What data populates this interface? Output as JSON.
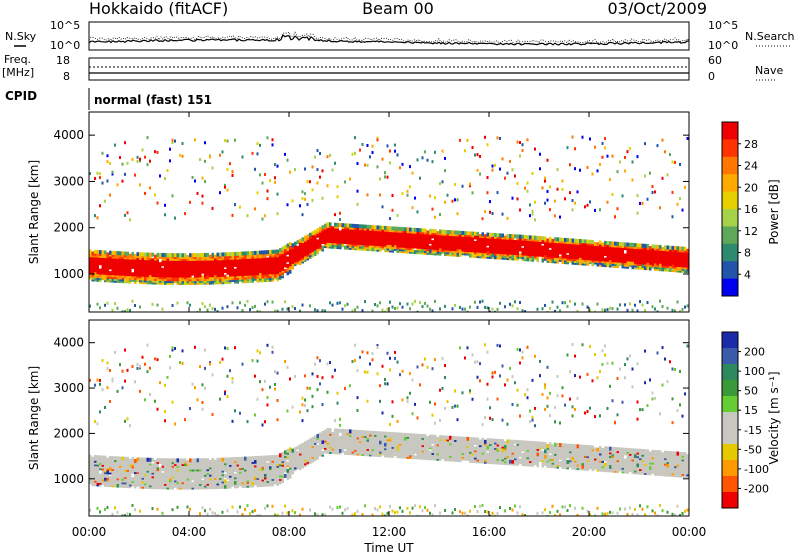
{
  "header": {
    "station": "Hokkaido (fitACF)",
    "beam": "Beam 00",
    "date": "03/Oct/2009"
  },
  "labels": {
    "nsky": "N.Sky",
    "nsearch": "N.Search",
    "freq": "Freq.",
    "mhz": "[MHz]",
    "nave": "Nave",
    "cpid": "CPID",
    "mode": "normal (fast) 151",
    "time_axis": "Time UT",
    "range_axis": "Slant Range [km]",
    "power_label": "Power [dB]",
    "velocity_label": "Velocity [m s⁻¹]"
  },
  "noise_axis": {
    "left": [
      "10^5",
      "10^0"
    ],
    "right": [
      "10^5",
      "10^0"
    ]
  },
  "freq_axis": {
    "left": [
      "18",
      "8"
    ],
    "right": [
      "60",
      "0"
    ]
  },
  "chart_data": [
    {
      "type": "heatmap",
      "name": "power",
      "x_ticks": [
        "00:00",
        "04:00",
        "08:00",
        "12:00",
        "16:00",
        "20:00",
        "00:00"
      ],
      "xlim_hours": [
        0,
        24
      ],
      "y_ticks": [
        1000,
        2000,
        3000,
        4000
      ],
      "ylim": [
        180,
        4500
      ],
      "colorbar": {
        "ticks": [
          "28",
          "24",
          "20",
          "16",
          "12",
          "8",
          "4"
        ],
        "colors": [
          "#ee0000",
          "#ff3300",
          "#ff7700",
          "#ffaa00",
          "#e6d000",
          "#a6d24a",
          "#5fa85a",
          "#2e8a6e",
          "#2255aa",
          "#0000ee"
        ]
      }
    },
    {
      "type": "heatmap",
      "name": "velocity",
      "x_ticks": [
        "00:00",
        "04:00",
        "08:00",
        "12:00",
        "16:00",
        "20:00",
        "00:00"
      ],
      "xlim_hours": [
        0,
        24
      ],
      "y_ticks": [
        1000,
        2000,
        3000,
        4000
      ],
      "ylim": [
        180,
        4500
      ],
      "colorbar": {
        "ticks": [
          "200",
          "100",
          "50",
          "15",
          "-15",
          "-50",
          "-100",
          "-200"
        ],
        "colors": [
          "#1a2aa8",
          "#3a5aaa",
          "#2e8a5e",
          "#3a9a3a",
          "#66cc33",
          "#c8c8c0",
          "#c8c8c0",
          "#e6c800",
          "#ff9900",
          "#ff5500",
          "#ee0000"
        ]
      }
    }
  ]
}
